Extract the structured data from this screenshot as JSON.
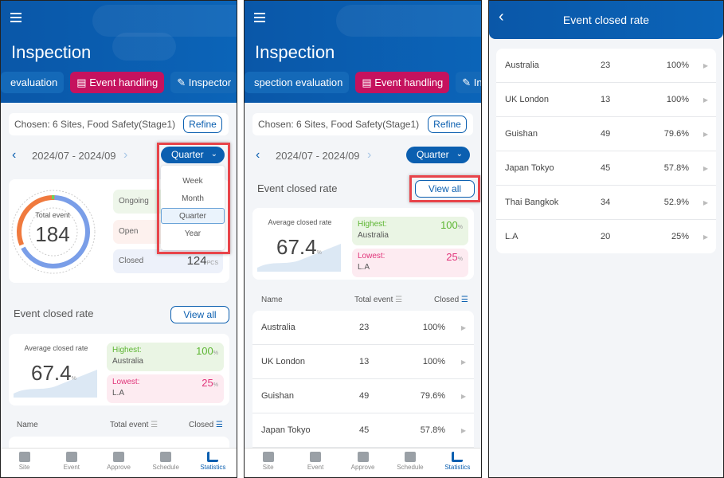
{
  "screen1": {
    "header": {
      "title": "Inspection",
      "tabs": [
        "evaluation",
        "Event handling",
        "Inspector"
      ]
    },
    "chosen": "Chosen: 6 Sites, Food Safety(Stage1)",
    "refine": "Refine",
    "date_range": "2024/07 - 2024/09",
    "period": "Quarter",
    "period_options": [
      "Week",
      "Month",
      "Quarter",
      "Year"
    ],
    "summary": {
      "total_label": "Total event",
      "total": "184",
      "ongoing_label": "Ongoing",
      "open_label": "Open",
      "closed_label": "Closed",
      "closed": "124",
      "unit": "PCS"
    },
    "closed_rate": {
      "title": "Event closed rate",
      "view_all": "View all",
      "avg_label": "Average closed rate",
      "avg": "67.4",
      "pct": "%",
      "highest_label": "Highest:",
      "highest_name": "Australia",
      "highest": "100",
      "lowest_label": "Lowest:",
      "lowest_name": "L.A",
      "lowest": "25"
    },
    "table_headers": [
      "Name",
      "Total event",
      "Closed"
    ]
  },
  "screen2": {
    "header": {
      "title": "Inspection",
      "tabs": [
        "spection evaluation",
        "Event handling",
        "Insp"
      ]
    },
    "chosen": "Chosen: 6 Sites, Food Safety(Stage1)",
    "refine": "Refine",
    "date_range": "2024/07 - 2024/09",
    "period": "Quarter",
    "rows": [
      {
        "name": "Australia",
        "total": "23",
        "rate": "100%"
      },
      {
        "name": "UK London",
        "total": "13",
        "rate": "100%"
      },
      {
        "name": "Guishan",
        "total": "49",
        "rate": "79.6%"
      },
      {
        "name": "Japan Tokyo",
        "total": "45",
        "rate": "57.8%"
      }
    ]
  },
  "screen3": {
    "title": "Event closed rate",
    "rows": [
      {
        "name": "Australia",
        "total": "23",
        "rate": "100%"
      },
      {
        "name": "UK London",
        "total": "13",
        "rate": "100%"
      },
      {
        "name": "Guishan",
        "total": "49",
        "rate": "79.6%"
      },
      {
        "name": "Japan Tokyo",
        "total": "45",
        "rate": "57.8%"
      },
      {
        "name": "Thai Bangkok",
        "total": "34",
        "rate": "52.9%"
      },
      {
        "name": "L.A",
        "total": "20",
        "rate": "25%"
      }
    ]
  },
  "nav": [
    "Site",
    "Event",
    "Approve",
    "Schedule",
    "Statistics"
  ],
  "colors": {
    "primary": "#0b5fb0",
    "accent": "#c5125e",
    "green": "#5cb531",
    "pink": "#e0357a"
  }
}
